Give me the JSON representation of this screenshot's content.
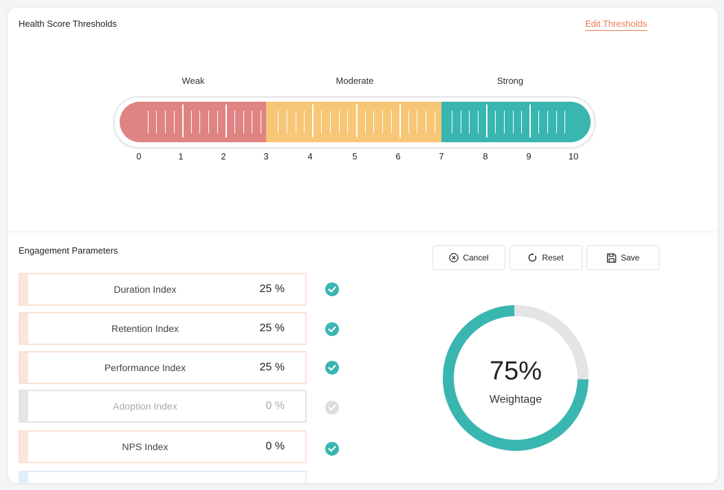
{
  "thresholds": {
    "title": "Health Score Thresholds",
    "edit_label": "Edit Thresholds",
    "bands": [
      {
        "label": "Weak",
        "from": 0,
        "to": 3,
        "color": "#e08383"
      },
      {
        "label": "Moderate",
        "from": 3,
        "to": 7,
        "color": "#f7c777"
      },
      {
        "label": "Strong",
        "from": 7,
        "to": 10,
        "color": "#3ab6b0"
      }
    ],
    "scale": [
      "0",
      "1",
      "2",
      "3",
      "4",
      "5",
      "6",
      "7",
      "8",
      "9",
      "10"
    ]
  },
  "engagement": {
    "title": "Engagement Parameters",
    "buttons": {
      "cancel": {
        "label": "Cancel",
        "icon": "close-circle-icon"
      },
      "reset": {
        "label": "Reset",
        "icon": "reset-icon"
      },
      "save": {
        "label": "Save",
        "icon": "save-icon"
      }
    },
    "parameters": [
      {
        "name": "Duration Index",
        "value": "25 %",
        "enabled": true
      },
      {
        "name": "Retention Index",
        "value": "25 %",
        "enabled": true
      },
      {
        "name": "Performance Index",
        "value": "25 %",
        "enabled": true
      },
      {
        "name": "Adoption Index",
        "value": "0 %",
        "enabled": false
      },
      {
        "name": "NPS Index",
        "value": "0 %",
        "enabled": true
      },
      {
        "name": "",
        "value": "",
        "enabled": true
      }
    ],
    "weightage": {
      "value": "75%",
      "caption": "Weightage",
      "fraction": 0.75,
      "color": "#3ab6b0",
      "track_color": "#e3e4e6"
    }
  }
}
